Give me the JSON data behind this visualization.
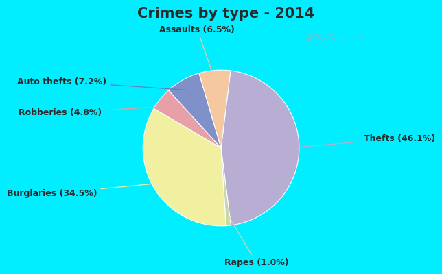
{
  "title": "Crimes by type - 2014",
  "slices": [
    {
      "label": "Thefts (46.1%)",
      "value": 46.1,
      "color": "#b8aed4"
    },
    {
      "label": "Rapes (1.0%)",
      "value": 1.0,
      "color": "#c8d8a8"
    },
    {
      "label": "Burglaries (34.5%)",
      "value": 34.5,
      "color": "#f0f0a0"
    },
    {
      "label": "Robberies (4.8%)",
      "value": 4.8,
      "color": "#e8a0a8"
    },
    {
      "label": "Auto thefts (7.2%)",
      "value": 7.2,
      "color": "#8090c8"
    },
    {
      "label": "Assaults (6.5%)",
      "value": 6.5,
      "color": "#f5c8a0"
    }
  ],
  "border_color": "#00eeff",
  "bg_color": "#d8ede4",
  "title_fontsize": 15,
  "label_fontsize": 9,
  "startangle": 83,
  "watermark": "@City-Data.com"
}
